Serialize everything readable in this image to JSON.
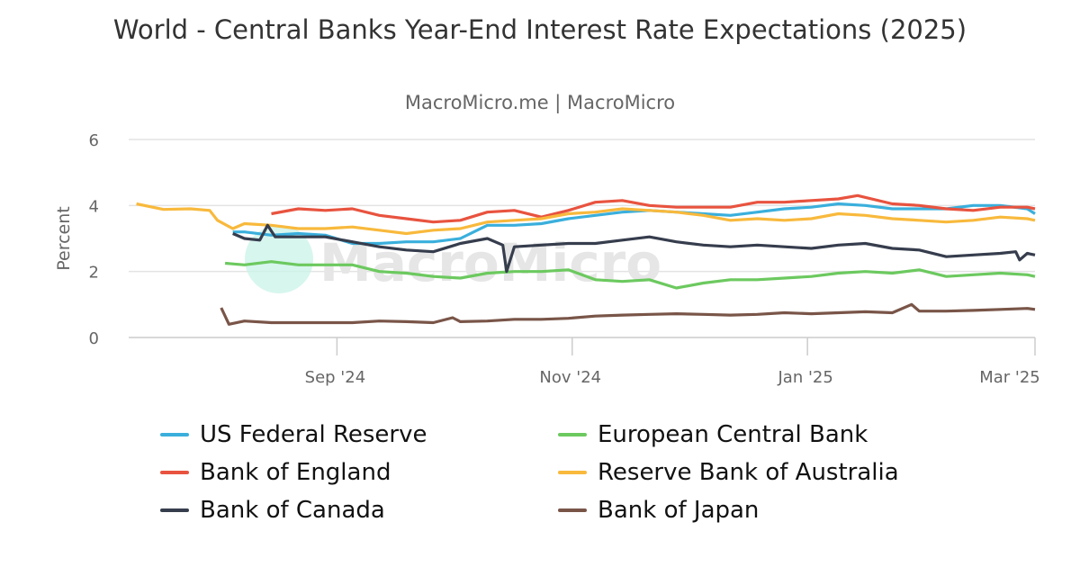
{
  "chart_data": {
    "type": "line",
    "title": "World - Central Banks Year-End Interest Rate Expectations (2025)",
    "subtitle": "MacroMicro.me | MacroMicro",
    "ylabel": "Percent",
    "xlabel": "",
    "ylim": [
      0,
      6
    ],
    "yticks": [
      "0",
      "2",
      "4",
      "6"
    ],
    "xlim": [
      "2024-07-09",
      "2025-03-01"
    ],
    "xticks": [
      {
        "date": "2024-09-01",
        "label": "Sep '24"
      },
      {
        "date": "2024-11-01",
        "label": "Nov '24"
      },
      {
        "date": "2025-01-01",
        "label": "Jan '25"
      },
      {
        "date": "2025-03-01",
        "label": "Mar '25"
      }
    ],
    "grid": true,
    "legend_position": "bottom",
    "watermark": "MacroMicro",
    "series": [
      {
        "name": "US Federal Reserve",
        "color": "#3aafdc",
        "points": [
          [
            "2024-08-05",
            3.2
          ],
          [
            "2024-08-08",
            3.2
          ],
          [
            "2024-08-15",
            3.1
          ],
          [
            "2024-08-22",
            3.15
          ],
          [
            "2024-08-29",
            3.1
          ],
          [
            "2024-09-05",
            2.85
          ],
          [
            "2024-09-12",
            2.85
          ],
          [
            "2024-09-19",
            2.9
          ],
          [
            "2024-09-26",
            2.9
          ],
          [
            "2024-10-03",
            3.0
          ],
          [
            "2024-10-10",
            3.4
          ],
          [
            "2024-10-17",
            3.4
          ],
          [
            "2024-10-24",
            3.45
          ],
          [
            "2024-10-31",
            3.6
          ],
          [
            "2024-11-07",
            3.7
          ],
          [
            "2024-11-14",
            3.8
          ],
          [
            "2024-11-21",
            3.85
          ],
          [
            "2024-11-28",
            3.8
          ],
          [
            "2024-12-05",
            3.75
          ],
          [
            "2024-12-12",
            3.7
          ],
          [
            "2024-12-19",
            3.8
          ],
          [
            "2024-12-26",
            3.9
          ],
          [
            "2025-01-02",
            3.95
          ],
          [
            "2025-01-09",
            4.05
          ],
          [
            "2025-01-16",
            4.0
          ],
          [
            "2025-01-23",
            3.9
          ],
          [
            "2025-01-30",
            3.9
          ],
          [
            "2025-02-06",
            3.9
          ],
          [
            "2025-02-13",
            4.0
          ],
          [
            "2025-02-20",
            4.0
          ],
          [
            "2025-02-27",
            3.9
          ],
          [
            "2025-03-01",
            3.75
          ]
        ]
      },
      {
        "name": "European Central Bank",
        "color": "#6cc95f",
        "points": [
          [
            "2024-08-03",
            2.25
          ],
          [
            "2024-08-08",
            2.2
          ],
          [
            "2024-08-15",
            2.3
          ],
          [
            "2024-08-22",
            2.2
          ],
          [
            "2024-08-29",
            2.2
          ],
          [
            "2024-09-05",
            2.2
          ],
          [
            "2024-09-12",
            2.0
          ],
          [
            "2024-09-19",
            1.95
          ],
          [
            "2024-09-26",
            1.85
          ],
          [
            "2024-10-03",
            1.8
          ],
          [
            "2024-10-10",
            1.95
          ],
          [
            "2024-10-17",
            2.0
          ],
          [
            "2024-10-24",
            2.0
          ],
          [
            "2024-10-31",
            2.05
          ],
          [
            "2024-11-07",
            1.75
          ],
          [
            "2024-11-14",
            1.7
          ],
          [
            "2024-11-21",
            1.75
          ],
          [
            "2024-11-28",
            1.5
          ],
          [
            "2024-12-05",
            1.65
          ],
          [
            "2024-12-12",
            1.75
          ],
          [
            "2024-12-19",
            1.75
          ],
          [
            "2024-12-26",
            1.8
          ],
          [
            "2025-01-02",
            1.85
          ],
          [
            "2025-01-09",
            1.95
          ],
          [
            "2025-01-16",
            2.0
          ],
          [
            "2025-01-23",
            1.95
          ],
          [
            "2025-01-30",
            2.05
          ],
          [
            "2025-02-06",
            1.85
          ],
          [
            "2025-02-13",
            1.9
          ],
          [
            "2025-02-20",
            1.95
          ],
          [
            "2025-02-27",
            1.9
          ],
          [
            "2025-03-01",
            1.85
          ]
        ]
      },
      {
        "name": "Bank of England",
        "color": "#e8533f",
        "points": [
          [
            "2024-08-15",
            3.75
          ],
          [
            "2024-08-22",
            3.9
          ],
          [
            "2024-08-29",
            3.85
          ],
          [
            "2024-09-05",
            3.9
          ],
          [
            "2024-09-12",
            3.7
          ],
          [
            "2024-09-19",
            3.6
          ],
          [
            "2024-09-26",
            3.5
          ],
          [
            "2024-10-03",
            3.55
          ],
          [
            "2024-10-10",
            3.8
          ],
          [
            "2024-10-17",
            3.85
          ],
          [
            "2024-10-24",
            3.65
          ],
          [
            "2024-10-31",
            3.85
          ],
          [
            "2024-11-07",
            4.1
          ],
          [
            "2024-11-14",
            4.15
          ],
          [
            "2024-11-21",
            4.0
          ],
          [
            "2024-11-28",
            3.95
          ],
          [
            "2024-12-05",
            3.95
          ],
          [
            "2024-12-12",
            3.95
          ],
          [
            "2024-12-19",
            4.1
          ],
          [
            "2024-12-26",
            4.1
          ],
          [
            "2025-01-02",
            4.15
          ],
          [
            "2025-01-09",
            4.2
          ],
          [
            "2025-01-14",
            4.3
          ],
          [
            "2025-01-23",
            4.05
          ],
          [
            "2025-01-30",
            4.0
          ],
          [
            "2025-02-06",
            3.9
          ],
          [
            "2025-02-13",
            3.85
          ],
          [
            "2025-02-20",
            3.95
          ],
          [
            "2025-02-27",
            3.95
          ],
          [
            "2025-03-01",
            3.9
          ]
        ]
      },
      {
        "name": "Reserve Bank of Australia",
        "color": "#f8b93c",
        "points": [
          [
            "2024-07-11",
            4.05
          ],
          [
            "2024-07-18",
            3.88
          ],
          [
            "2024-07-25",
            3.9
          ],
          [
            "2024-07-30",
            3.85
          ],
          [
            "2024-08-01",
            3.55
          ],
          [
            "2024-08-05",
            3.3
          ],
          [
            "2024-08-08",
            3.45
          ],
          [
            "2024-08-15",
            3.4
          ],
          [
            "2024-08-22",
            3.3
          ],
          [
            "2024-08-29",
            3.3
          ],
          [
            "2024-09-05",
            3.35
          ],
          [
            "2024-09-12",
            3.25
          ],
          [
            "2024-09-19",
            3.15
          ],
          [
            "2024-09-26",
            3.25
          ],
          [
            "2024-10-03",
            3.3
          ],
          [
            "2024-10-10",
            3.5
          ],
          [
            "2024-10-17",
            3.55
          ],
          [
            "2024-10-24",
            3.6
          ],
          [
            "2024-10-31",
            3.75
          ],
          [
            "2024-11-07",
            3.8
          ],
          [
            "2024-11-14",
            3.9
          ],
          [
            "2024-11-21",
            3.85
          ],
          [
            "2024-11-28",
            3.8
          ],
          [
            "2024-12-05",
            3.7
          ],
          [
            "2024-12-12",
            3.55
          ],
          [
            "2024-12-19",
            3.6
          ],
          [
            "2024-12-26",
            3.55
          ],
          [
            "2025-01-02",
            3.6
          ],
          [
            "2025-01-09",
            3.75
          ],
          [
            "2025-01-16",
            3.7
          ],
          [
            "2025-01-23",
            3.6
          ],
          [
            "2025-01-30",
            3.55
          ],
          [
            "2025-02-06",
            3.5
          ],
          [
            "2025-02-13",
            3.55
          ],
          [
            "2025-02-20",
            3.65
          ],
          [
            "2025-02-27",
            3.6
          ],
          [
            "2025-03-01",
            3.55
          ]
        ]
      },
      {
        "name": "Bank of Canada",
        "color": "#363d4d",
        "points": [
          [
            "2024-08-05",
            3.15
          ],
          [
            "2024-08-08",
            3.0
          ],
          [
            "2024-08-12",
            2.95
          ],
          [
            "2024-08-14",
            3.4
          ],
          [
            "2024-08-16",
            3.05
          ],
          [
            "2024-08-22",
            3.05
          ],
          [
            "2024-08-29",
            3.05
          ],
          [
            "2024-09-05",
            2.9
          ],
          [
            "2024-09-12",
            2.75
          ],
          [
            "2024-09-19",
            2.65
          ],
          [
            "2024-09-26",
            2.6
          ],
          [
            "2024-10-03",
            2.85
          ],
          [
            "2024-10-10",
            3.0
          ],
          [
            "2024-10-14",
            2.8
          ],
          [
            "2024-10-15",
            2.0
          ],
          [
            "2024-10-17",
            2.75
          ],
          [
            "2024-10-24",
            2.8
          ],
          [
            "2024-10-31",
            2.85
          ],
          [
            "2024-11-07",
            2.85
          ],
          [
            "2024-11-14",
            2.95
          ],
          [
            "2024-11-21",
            3.05
          ],
          [
            "2024-11-28",
            2.9
          ],
          [
            "2024-12-05",
            2.8
          ],
          [
            "2024-12-12",
            2.75
          ],
          [
            "2024-12-19",
            2.8
          ],
          [
            "2024-12-26",
            2.75
          ],
          [
            "2025-01-02",
            2.7
          ],
          [
            "2025-01-09",
            2.8
          ],
          [
            "2025-01-16",
            2.85
          ],
          [
            "2025-01-23",
            2.7
          ],
          [
            "2025-01-30",
            2.65
          ],
          [
            "2025-02-06",
            2.45
          ],
          [
            "2025-02-13",
            2.5
          ],
          [
            "2025-02-20",
            2.55
          ],
          [
            "2025-02-24",
            2.6
          ],
          [
            "2025-02-25",
            2.35
          ],
          [
            "2025-02-27",
            2.55
          ],
          [
            "2025-03-01",
            2.5
          ]
        ]
      },
      {
        "name": "Bank of Japan",
        "color": "#795548",
        "points": [
          [
            "2024-08-02",
            0.9
          ],
          [
            "2024-08-04",
            0.4
          ],
          [
            "2024-08-08",
            0.5
          ],
          [
            "2024-08-15",
            0.45
          ],
          [
            "2024-08-22",
            0.45
          ],
          [
            "2024-08-29",
            0.45
          ],
          [
            "2024-09-05",
            0.45
          ],
          [
            "2024-09-12",
            0.5
          ],
          [
            "2024-09-19",
            0.48
          ],
          [
            "2024-09-26",
            0.45
          ],
          [
            "2024-10-01",
            0.6
          ],
          [
            "2024-10-03",
            0.48
          ],
          [
            "2024-10-10",
            0.5
          ],
          [
            "2024-10-17",
            0.55
          ],
          [
            "2024-10-24",
            0.55
          ],
          [
            "2024-10-31",
            0.58
          ],
          [
            "2024-11-07",
            0.65
          ],
          [
            "2024-11-14",
            0.68
          ],
          [
            "2024-11-21",
            0.7
          ],
          [
            "2024-11-28",
            0.72
          ],
          [
            "2024-12-05",
            0.7
          ],
          [
            "2024-12-12",
            0.68
          ],
          [
            "2024-12-19",
            0.7
          ],
          [
            "2024-12-26",
            0.75
          ],
          [
            "2025-01-02",
            0.72
          ],
          [
            "2025-01-09",
            0.75
          ],
          [
            "2025-01-16",
            0.78
          ],
          [
            "2025-01-23",
            0.75
          ],
          [
            "2025-01-28",
            1.0
          ],
          [
            "2025-01-30",
            0.8
          ],
          [
            "2025-02-06",
            0.8
          ],
          [
            "2025-02-13",
            0.82
          ],
          [
            "2025-02-20",
            0.85
          ],
          [
            "2025-02-27",
            0.88
          ],
          [
            "2025-03-01",
            0.85
          ]
        ]
      }
    ]
  }
}
